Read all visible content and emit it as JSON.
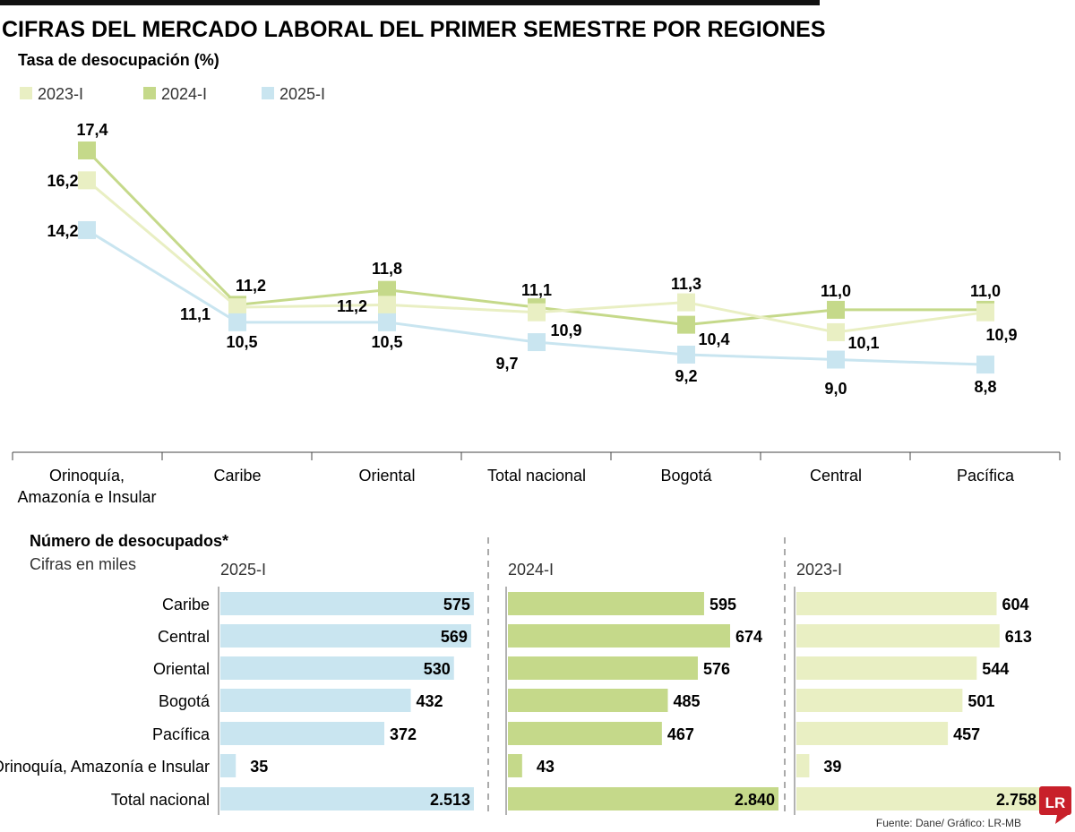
{
  "title": "CIFRAS DEL MERCADO LABORAL DEL PRIMER SEMESTRE POR REGIONES",
  "source": "Fuente: Dane/ Gráfico: LR-MB",
  "logo": "LR",
  "colors": {
    "2023-I": "#e9efc3",
    "2024-I": "#c5d98a",
    "2025-I": "#c9e5f0"
  },
  "chart_data": [
    {
      "type": "line",
      "title": "Tasa de desocupación (%)",
      "categories": [
        "Orinoquía, Amazonía e Insular",
        "Caribe",
        "Oriental",
        "Total nacional",
        "Bogotá",
        "Central",
        "Pacífica"
      ],
      "legend": "top-left",
      "series": [
        {
          "name": "2023-I",
          "values": [
            16.2,
            11.1,
            11.2,
            10.9,
            11.3,
            10.1,
            10.9
          ],
          "labels": [
            "16,2",
            "11,1",
            "11,2",
            "10,9",
            "11,3",
            "10,1",
            "10,9"
          ]
        },
        {
          "name": "2024-I",
          "values": [
            17.4,
            11.2,
            11.8,
            11.1,
            10.4,
            11.0,
            11.0
          ],
          "labels": [
            "17,4",
            "11,2",
            "11,8",
            "11,1",
            "10,4",
            "11,0",
            "11,0"
          ]
        },
        {
          "name": "2025-I",
          "values": [
            14.2,
            10.5,
            10.5,
            9.7,
            9.2,
            9.0,
            8.8
          ],
          "labels": [
            "14,2",
            "10,5",
            "10,5",
            "9,7",
            "9,2",
            "9,0",
            "8,8"
          ]
        }
      ]
    },
    {
      "type": "bar",
      "title": "Número de desocupados*",
      "subtitle": "Cifras en miles",
      "categories": [
        "Caribe",
        "Central",
        "Oriental",
        "Bogotá",
        "Pacífica",
        "Orinoquía, Amazonía e Insular",
        "Total nacional"
      ],
      "series": [
        {
          "name": "2025-I",
          "values": [
            575,
            569,
            530,
            432,
            372,
            35,
            2513
          ],
          "labels": [
            "575",
            "569",
            "530",
            "432",
            "372",
            "35",
            "2.513"
          ]
        },
        {
          "name": "2024-I",
          "values": [
            595,
            674,
            576,
            485,
            467,
            43,
            2840
          ],
          "labels": [
            "595",
            "674",
            "576",
            "485",
            "467",
            "43",
            "2.840"
          ]
        },
        {
          "name": "2023-I",
          "values": [
            604,
            613,
            544,
            501,
            457,
            39,
            2758
          ],
          "labels": [
            "604",
            "613",
            "544",
            "501",
            "457",
            "39",
            "2.758"
          ]
        }
      ]
    }
  ]
}
